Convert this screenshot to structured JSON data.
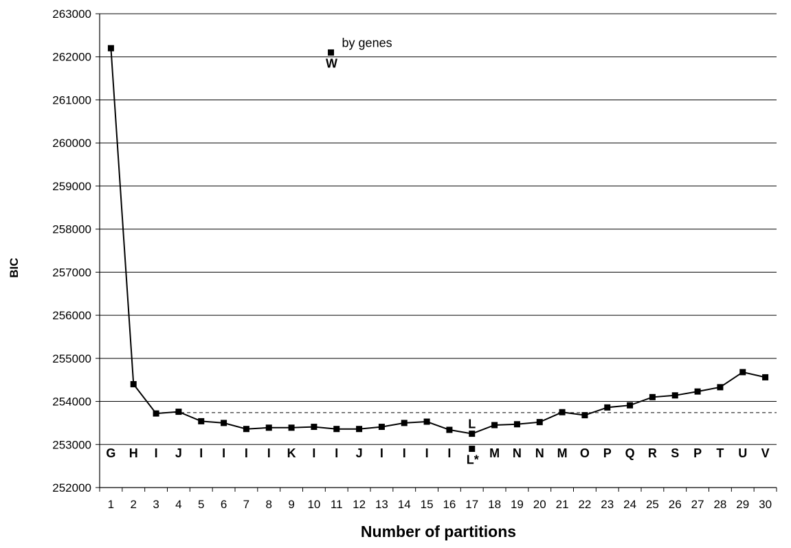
{
  "chart_data": {
    "type": "line",
    "title": "",
    "xlabel": "Number of partitions",
    "ylabel": "BIC",
    "xlim": [
      0.5,
      30.5
    ],
    "ylim": [
      252000,
      263000
    ],
    "yticks": [
      252000,
      253000,
      254000,
      255000,
      256000,
      257000,
      258000,
      259000,
      260000,
      261000,
      262000,
      263000
    ],
    "ytick_labels": [
      "252000",
      "253000",
      "254000",
      "255000",
      "256000",
      "257000",
      "258000",
      "259000",
      "260000",
      "261000",
      "262000",
      "263000"
    ],
    "x": [
      1,
      2,
      3,
      4,
      5,
      6,
      7,
      8,
      9,
      10,
      11,
      12,
      13,
      14,
      15,
      16,
      17,
      18,
      19,
      20,
      21,
      22,
      23,
      24,
      25,
      26,
      27,
      28,
      29,
      30
    ],
    "xtick_labels": [
      "1",
      "2",
      "3",
      "4",
      "5",
      "6",
      "7",
      "8",
      "9",
      "10",
      "11",
      "12",
      "13",
      "14",
      "15",
      "16",
      "17",
      "18",
      "19",
      "20",
      "21",
      "22",
      "23",
      "24",
      "25",
      "26",
      "27",
      "28",
      "29",
      "30"
    ],
    "series": [
      {
        "values": [
          262200,
          254400,
          253720,
          253760,
          253540,
          253500,
          253360,
          253390,
          253390,
          253410,
          253360,
          253360,
          253410,
          253500,
          253530,
          253340,
          253250,
          253450,
          253470,
          253520,
          253750,
          253680,
          253860,
          253910,
          254100,
          254140,
          254230,
          254330,
          254680,
          254560
        ],
        "color": "#000000",
        "marker": "square"
      }
    ],
    "point_labels": [
      "G",
      "H",
      "I",
      "J",
      "I",
      "I",
      "I",
      "I",
      "K",
      "I",
      "I",
      "J",
      "I",
      "I",
      "I",
      "I",
      "",
      "M",
      "N",
      "N",
      "M",
      "O",
      "P",
      "Q",
      "R",
      "S",
      "P",
      "T",
      "U",
      "V"
    ],
    "extra_points": [
      {
        "x": 10.75,
        "y": 262100,
        "label_right": "by genes",
        "label_below": "W"
      },
      {
        "x": 17,
        "y": 252900,
        "label_above": "L",
        "label_below": "L*"
      }
    ],
    "reference_line": {
      "y": 253740,
      "style": "dashed"
    },
    "grid": "horizontal",
    "legend": "none"
  }
}
